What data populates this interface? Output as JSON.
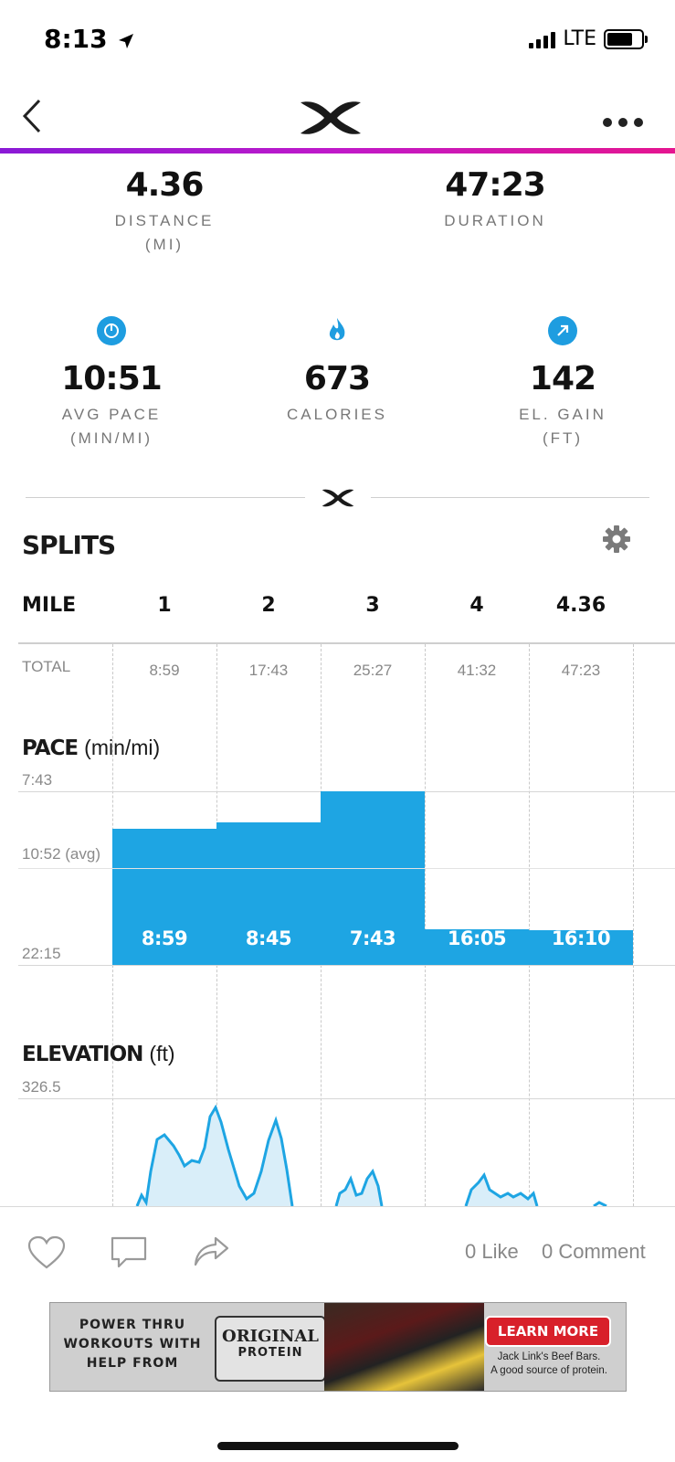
{
  "status": {
    "time": "8:13",
    "network": "LTE"
  },
  "summary": {
    "distance": {
      "value": "4.36",
      "label": "DISTANCE",
      "unit": "(MI)"
    },
    "duration": {
      "value": "47:23",
      "label": "DURATION"
    },
    "avg_pace": {
      "value": "10:51",
      "label": "AVG PACE",
      "unit": "(MIN/MI)",
      "icon": "speedometer-icon"
    },
    "calories": {
      "value": "673",
      "label": "CALORIES",
      "icon": "flame-icon"
    },
    "el_gain": {
      "value": "142",
      "label": "EL. GAIN",
      "unit": "(FT)",
      "icon": "arrow-up-right-icon"
    }
  },
  "splits": {
    "title": "SPLITS",
    "header_label": "MILE",
    "miles": [
      "1",
      "2",
      "3",
      "4",
      "4.36"
    ],
    "total_label": "TOTAL",
    "totals": [
      "8:59",
      "17:43",
      "25:27",
      "41:32",
      "47:23"
    ]
  },
  "pace": {
    "title": "PACE",
    "unit": "(min/mi)",
    "axis_top": "7:43",
    "axis_avg": "10:52 (avg)",
    "axis_bottom": "22:15",
    "splits": [
      "8:59",
      "8:45",
      "7:43",
      "16:05",
      "16:10"
    ]
  },
  "elevation": {
    "title": "ELEVATION",
    "unit": "(ft)",
    "axis_top": "326.5"
  },
  "social": {
    "likes": "0 Like",
    "comments": "0 Comment"
  },
  "ad": {
    "text_lines": [
      "POWER THRU",
      "WORKOUTS WITH",
      "HELP FROM"
    ],
    "brand_line1": "ORIGINAL",
    "brand_line2": "PROTEIN",
    "cta": "LEARN MORE",
    "tagline1": "Jack Link's Beef Bars.",
    "tagline2": "A good source of protein."
  },
  "colors": {
    "accent": "#1ea5e3",
    "gradient_start": "#8a1ad6",
    "gradient_end": "#e5158f"
  }
}
